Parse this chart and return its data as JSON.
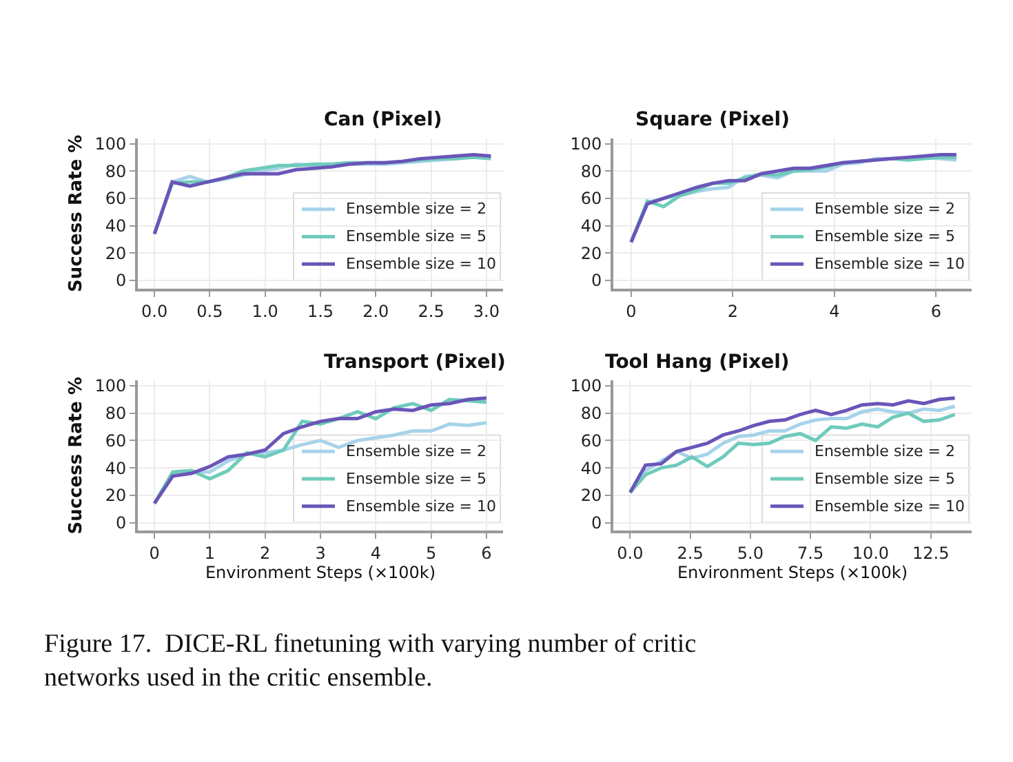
{
  "chart_data": [
    {
      "type": "line",
      "title": "Can (Pixel)",
      "ylabel": "Success Rate %",
      "grid": true,
      "legend": "bottom right",
      "x": [
        0,
        0.16,
        0.32,
        0.48,
        0.64,
        0.8,
        0.96,
        1.12,
        1.28,
        1.44,
        1.6,
        1.76,
        1.92,
        2.08,
        2.24,
        2.4,
        2.56,
        2.72,
        2.88,
        3.04
      ],
      "xlim": [
        -0.15,
        3.15
      ],
      "xticks": [
        {
          "value": 0,
          "label": "0.0"
        },
        {
          "value": 0.5,
          "label": "0.5"
        },
        {
          "value": 1,
          "label": "1.0"
        },
        {
          "value": 1.5,
          "label": "1.5"
        },
        {
          "value": 2,
          "label": "2.0"
        },
        {
          "value": 2.5,
          "label": "2.5"
        },
        {
          "value": 3,
          "label": "3.0"
        }
      ],
      "ylim": [
        -6,
        104
      ],
      "yticks": [
        0,
        20,
        40,
        60,
        80,
        100
      ],
      "series": [
        {
          "name": "Ensemble size = 2",
          "color": "#a6d3ea",
          "values": [
            34,
            72,
            76,
            72,
            74,
            77,
            80,
            82,
            85,
            84,
            84,
            85,
            85,
            85,
            86,
            87,
            88,
            89,
            90,
            90
          ]
        },
        {
          "name": "Ensemble size = 5",
          "color": "#6fcbbb",
          "values": [
            34,
            71,
            72,
            72,
            75,
            80,
            82,
            84,
            84,
            85,
            85,
            86,
            86,
            86,
            87,
            88,
            89,
            89,
            90,
            89
          ]
        },
        {
          "name": "Ensemble size = 10",
          "color": "#6a55b8",
          "values": [
            34,
            72,
            69,
            72,
            75,
            78,
            78,
            78,
            81,
            82,
            83,
            85,
            86,
            86,
            87,
            89,
            90,
            91,
            92,
            91
          ]
        }
      ]
    },
    {
      "type": "line",
      "title": "Square (Pixel)",
      "grid": true,
      "legend": "bottom right",
      "x": [
        0,
        0.32,
        0.64,
        0.96,
        1.28,
        1.6,
        1.92,
        2.24,
        2.56,
        2.88,
        3.2,
        3.52,
        3.84,
        4.16,
        4.48,
        4.8,
        5.12,
        5.44,
        5.76,
        6.08,
        6.4
      ],
      "xlim": [
        -0.35,
        6.7
      ],
      "xticks": [
        0,
        2,
        4,
        6
      ],
      "ylim": [
        -6,
        104
      ],
      "yticks": [
        0,
        20,
        40,
        60,
        80,
        100
      ],
      "series": [
        {
          "name": "Ensemble size = 2",
          "color": "#a6d3ea",
          "values": [
            28,
            57,
            60,
            62,
            65,
            67,
            68,
            76,
            77,
            75,
            80,
            80,
            80,
            85,
            86,
            89,
            89,
            89,
            90,
            89,
            88
          ]
        },
        {
          "name": "Ensemble size = 5",
          "color": "#6fcbbb",
          "values": [
            28,
            58,
            54,
            62,
            66,
            71,
            71,
            75,
            78,
            77,
            80,
            81,
            83,
            86,
            87,
            88,
            89,
            88,
            89,
            90,
            90
          ]
        },
        {
          "name": "Ensemble size = 10",
          "color": "#6a55b8",
          "values": [
            28,
            56,
            60,
            64,
            68,
            71,
            73,
            73,
            78,
            80,
            82,
            82,
            84,
            86,
            87,
            88,
            89,
            90,
            91,
            92,
            92
          ]
        }
      ]
    },
    {
      "type": "line",
      "title": "Transport (Pixel)",
      "ylabel": "Success Rate %",
      "xlabel": "Environment Steps (×100k)",
      "grid": true,
      "legend": "bottom right",
      "x": [
        0,
        0.33,
        0.67,
        1,
        1.33,
        1.67,
        2,
        2.33,
        2.67,
        3,
        3.33,
        3.67,
        4,
        4.33,
        4.67,
        5,
        5.33,
        5.67,
        6
      ],
      "xlim": [
        -0.3,
        6.3
      ],
      "xticks": [
        0,
        1,
        2,
        3,
        4,
        5,
        6
      ],
      "ylim": [
        -6,
        104
      ],
      "yticks": [
        0,
        20,
        40,
        60,
        80,
        100
      ],
      "series": [
        {
          "name": "Ensemble size = 2",
          "color": "#a6d3ea",
          "values": [
            14,
            36,
            37,
            37,
            45,
            50,
            51,
            53,
            57,
            60,
            55,
            60,
            62,
            64,
            67,
            67,
            72,
            71,
            73
          ]
        },
        {
          "name": "Ensemble size = 5",
          "color": "#6fcbbb",
          "values": [
            14,
            37,
            38,
            32,
            38,
            51,
            48,
            53,
            74,
            72,
            76,
            81,
            76,
            84,
            87,
            82,
            90,
            89,
            88
          ]
        },
        {
          "name": "Ensemble size = 10",
          "color": "#6a55b8",
          "values": [
            14,
            34,
            36,
            41,
            48,
            50,
            53,
            65,
            70,
            74,
            76,
            76,
            81,
            83,
            82,
            86,
            87,
            90,
            91
          ]
        }
      ]
    },
    {
      "type": "line",
      "title": "Tool Hang (Pixel)",
      "xlabel": "Environment Steps (×100k)",
      "grid": true,
      "legend": "bottom right",
      "x": [
        0,
        0.64,
        1.29,
        1.93,
        2.57,
        3.21,
        3.86,
        4.5,
        5.14,
        5.79,
        6.43,
        7.07,
        7.71,
        8.36,
        9,
        9.64,
        10.29,
        10.93,
        11.57,
        12.21,
        12.86,
        13.5
      ],
      "xlim": [
        -0.7,
        14.2
      ],
      "xticks": [
        {
          "value": 0,
          "label": "0.0"
        },
        {
          "value": 2.5,
          "label": "2.5"
        },
        {
          "value": 5,
          "label": "5.0"
        },
        {
          "value": 7.5,
          "label": "7.5"
        },
        {
          "value": 10,
          "label": "10.0"
        },
        {
          "value": 12.5,
          "label": "12.5"
        }
      ],
      "ylim": [
        -6,
        104
      ],
      "yticks": [
        0,
        20,
        40,
        60,
        80,
        100
      ],
      "annotations": [
        "Figure 17.  DICE-RL finetuning with varying number of critic networks used in the critic ensemble."
      ],
      "series": [
        {
          "name": "Ensemble size = 2",
          "color": "#a6d3ea",
          "values": [
            22,
            38,
            45,
            52,
            47,
            50,
            58,
            63,
            64,
            67,
            67,
            72,
            75,
            76,
            76,
            81,
            83,
            81,
            80,
            83,
            82,
            85
          ]
        },
        {
          "name": "Ensemble size = 5",
          "color": "#6fcbbb",
          "values": [
            22,
            35,
            40,
            42,
            48,
            41,
            48,
            58,
            57,
            58,
            63,
            65,
            60,
            70,
            69,
            72,
            70,
            77,
            80,
            74,
            75,
            79
          ]
        },
        {
          "name": "Ensemble size = 10",
          "color": "#6a55b8",
          "values": [
            22,
            42,
            43,
            52,
            55,
            58,
            64,
            67,
            71,
            74,
            75,
            79,
            82,
            79,
            82,
            86,
            87,
            86,
            89,
            87,
            90,
            91
          ]
        }
      ]
    }
  ]
}
